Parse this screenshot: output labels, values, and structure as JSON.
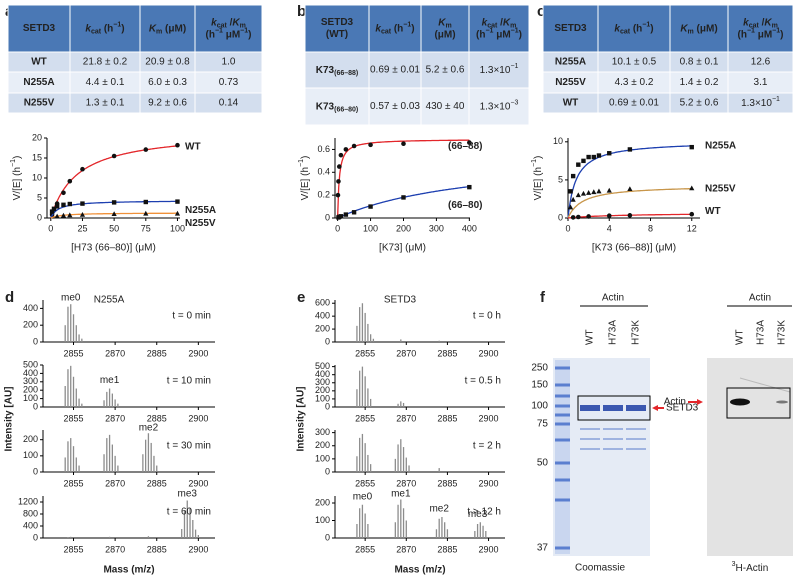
{
  "panel_labels": [
    "a",
    "b",
    "c",
    "d",
    "e",
    "f"
  ],
  "tables": [
    {
      "header": [
        "SETD3",
        [
          [
            {
              "text": "k",
              "style": "i"
            },
            {
              "text": "cat",
              "style": "sub"
            },
            " (h",
            {
              "text": "−1",
              "style": "sup"
            },
            ")"
          ]
        ],
        [
          [
            {
              "text": "K",
              "style": "i"
            },
            {
              "text": "m",
              "style": "sub"
            },
            " (μM)"
          ]
        ],
        [
          [
            {
              "text": "k",
              "style": "i"
            },
            {
              "text": "cat",
              "style": "sub"
            },
            " /",
            {
              "text": "K",
              "style": "i"
            },
            {
              "text": "m",
              "style": "sub"
            }
          ],
          [
            "(h",
            {
              "text": "−1",
              "style": "sup"
            },
            " μM",
            {
              "text": "−1",
              "style": "sup"
            },
            ")"
          ]
        ]
      ],
      "rows": [
        {
          "color": "#e3262a",
          "cells": [
            "WT",
            "21.8 ± 0.2",
            "20.9 ± 0.8",
            "1.0"
          ]
        },
        {
          "color": "#1d3fb0",
          "cells": [
            "N255A",
            "4.4 ± 0.1",
            "6.0 ± 0.3",
            "0.73"
          ]
        },
        {
          "color": "#f0913a",
          "cells": [
            "N255V",
            "1.3 ± 0.1",
            "9.2 ± 0.6",
            "0.14"
          ]
        }
      ]
    },
    {
      "header": [
        [
          "SETD3",
          "(WT)"
        ],
        [
          [
            {
              "text": "k",
              "style": "i"
            },
            {
              "text": "cat",
              "style": "sub"
            },
            " (h",
            {
              "text": "−1",
              "style": "sup"
            },
            ")"
          ]
        ],
        [
          [
            {
              "text": "K",
              "style": "i"
            },
            {
              "text": "m",
              "style": "sub"
            }
          ],
          [
            "(μM)"
          ]
        ],
        [
          [
            {
              "text": "k",
              "style": "i"
            },
            {
              "text": "cat",
              "style": "sub"
            },
            " /",
            {
              "text": "K",
              "style": "i"
            },
            {
              "text": "m",
              "style": "sub"
            }
          ],
          [
            "(h",
            {
              "text": "−1",
              "style": "sup"
            },
            " μM",
            {
              "text": "−1",
              "style": "sup"
            },
            ")"
          ]
        ]
      ],
      "rows": [
        {
          "color": "#e3262a",
          "cells": [
            [
              [
                "K73",
                {
                  "text": "(66–88)",
                  "style": "sub"
                }
              ]
            ],
            "0.69 ± 0.01",
            "5.2 ± 0.6",
            [
              [
                "1.3×10",
                {
                  "text": "−1",
                  "style": "sup"
                }
              ]
            ]
          ]
        },
        {
          "color": "#1d3fb0",
          "cells": [
            [
              [
                "K73",
                {
                  "text": "(66–80)",
                  "style": "sub"
                }
              ]
            ],
            "0.57 ± 0.03",
            "430 ± 40",
            [
              [
                "1.3×10",
                {
                  "text": "−3",
                  "style": "sup"
                }
              ]
            ]
          ]
        }
      ]
    },
    {
      "header": [
        "SETD3",
        [
          [
            {
              "text": "k",
              "style": "i"
            },
            {
              "text": "cat",
              "style": "sub"
            },
            " (h",
            {
              "text": "−1",
              "style": "sup"
            },
            ")"
          ]
        ],
        [
          [
            {
              "text": "K",
              "style": "i"
            },
            {
              "text": "m",
              "style": "sub"
            },
            " (μM)"
          ]
        ],
        [
          [
            {
              "text": "k",
              "style": "i"
            },
            {
              "text": "cat",
              "style": "sub"
            },
            " /",
            {
              "text": "K",
              "style": "i"
            },
            {
              "text": "m",
              "style": "sub"
            }
          ],
          [
            "(h",
            {
              "text": "−1",
              "style": "sup"
            },
            " μM",
            {
              "text": "−1",
              "style": "sup"
            },
            ")"
          ]
        ]
      ],
      "rows": [
        {
          "color": "#1d3fb0",
          "cells": [
            "N255A",
            "10.1 ± 0.5",
            "0.8 ± 0.1",
            "12.6"
          ]
        },
        {
          "color": "#f0913a",
          "cells": [
            "N255V",
            "4.3 ± 0.2",
            "1.4 ± 0.2",
            "3.1"
          ]
        },
        {
          "color": "#e3262a",
          "cells": [
            "WT",
            "0.69 ± 0.01",
            "5.2 ± 0.6",
            [
              [
                "1.3×10",
                {
                  "text": "−1",
                  "style": "sup"
                }
              ]
            ]
          ]
        }
      ]
    }
  ],
  "chart_data": [
    {
      "type": "scatter",
      "xlabel": "[H73 (66–80)] (μM)",
      "ylabel": [
        [
          "V/[E] (h",
          {
            "text": "−1",
            "style": "sup"
          },
          ")"
        ]
      ],
      "xlim": [
        -3,
        102
      ],
      "ylim": [
        0,
        20
      ],
      "xticks": [
        0,
        25,
        50,
        75,
        100
      ],
      "yticks": [
        0,
        5,
        10,
        15,
        20
      ],
      "series": [
        {
          "name": "WT",
          "color": "#e3262a",
          "marker": "circle",
          "kcat": 21.8,
          "km": 20.9,
          "x": [
            1,
            2.5,
            5,
            10,
            15,
            25,
            50,
            75,
            100
          ],
          "values": [
            0.8,
            2,
            3.6,
            6.3,
            9.2,
            12.2,
            15.5,
            17.1,
            18.2
          ]
        },
        {
          "name": "N255A",
          "color": "#1d3fb0",
          "marker": "square",
          "kcat": 4.4,
          "km": 6.0,
          "x": [
            1,
            2.5,
            5,
            10,
            15,
            25,
            50,
            75,
            100
          ],
          "values": [
            1.6,
            2.3,
            2.9,
            3.3,
            3.5,
            3.6,
            3.9,
            4.0,
            4.1
          ]
        },
        {
          "name": "N255V",
          "color": "#f0913a",
          "marker": "triangle",
          "kcat": 1.3,
          "km": 9.2,
          "x": [
            5,
            10,
            15,
            25,
            50,
            75,
            100
          ],
          "values": [
            0.4,
            0.6,
            0.7,
            0.8,
            1.0,
            1.1,
            1.1
          ]
        }
      ]
    },
    {
      "type": "scatter",
      "xlabel": "[K73] (μM)",
      "ylabel": [
        [
          "V/[E] (h",
          {
            "text": "−1",
            "style": "sup"
          },
          ")"
        ]
      ],
      "xlim": [
        -8,
        402
      ],
      "ylim": [
        0,
        0.7
      ],
      "xticks": [
        0,
        100,
        200,
        300,
        400
      ],
      "yticks": [
        0,
        0.2,
        0.4,
        0.6
      ],
      "series": [
        {
          "name": "(66–88)",
          "color": "#e3262a",
          "marker": "circle",
          "kcat": 0.69,
          "km": 5.2,
          "x": [
            1,
            2.5,
            5,
            10,
            25,
            50,
            100,
            200,
            400
          ],
          "values": [
            0.2,
            0.32,
            0.45,
            0.55,
            0.6,
            0.63,
            0.64,
            0.65,
            0.66
          ]
        },
        {
          "name": "(66–80)",
          "color": "#1d3fb0",
          "marker": "square",
          "kcat": 0.57,
          "km": 430,
          "x": [
            2.5,
            5,
            10,
            25,
            50,
            100,
            200,
            400
          ],
          "values": [
            0.005,
            0.01,
            0.015,
            0.03,
            0.05,
            0.1,
            0.18,
            0.27
          ]
        }
      ]
    },
    {
      "type": "scatter",
      "xlabel": "[K73 (66–88)] (μM)",
      "ylabel": [
        [
          "V/[E] (h",
          {
            "text": "−1",
            "style": "sup"
          },
          ")"
        ]
      ],
      "xlim": [
        0,
        12.8
      ],
      "ylim": [
        0,
        10.5
      ],
      "xticks": [
        0,
        4,
        8,
        12
      ],
      "yticks": [
        0,
        5,
        10
      ],
      "series": [
        {
          "name": "N255A",
          "color": "#1d3fb0",
          "marker": "square",
          "kcat": 10.1,
          "km": 0.8,
          "x": [
            0.25,
            0.5,
            1,
            1.5,
            2,
            2.5,
            3,
            4,
            6,
            12
          ],
          "values": [
            3.5,
            5.5,
            7,
            7.5,
            8,
            8,
            8.2,
            8.5,
            9,
            9.3
          ]
        },
        {
          "name": "N255V",
          "color": "#c8964a",
          "marker": "triangle",
          "kcat": 4.3,
          "km": 1.4,
          "x": [
            0.25,
            0.5,
            1,
            1.5,
            2,
            2.5,
            3,
            4,
            6,
            12
          ],
          "values": [
            1.4,
            2.4,
            3,
            3.2,
            3.3,
            3.4,
            3.5,
            3.6,
            3.8,
            3.9
          ]
        },
        {
          "name": "WT",
          "color": "#e3262a",
          "marker": "circle",
          "kcat": 0.69,
          "km": 5.2,
          "x": [
            0.5,
            1,
            2,
            4,
            6,
            12
          ],
          "values": [
            0.08,
            0.13,
            0.2,
            0.3,
            0.35,
            0.5
          ]
        }
      ]
    },
    {
      "type": "spectrum",
      "title": "N255A",
      "ylabel": "Intensity [AU]",
      "note": "t = 0 min",
      "annotations": [
        "me0"
      ],
      "color": "#8c8c8c",
      "annotation_color": "#e3262a",
      "xlim": [
        2844,
        2906
      ],
      "ylim": [
        0,
        500
      ],
      "xticks": [
        2855,
        2870,
        2885,
        2900
      ],
      "yticks": [
        0,
        200,
        400
      ],
      "x": [
        2852,
        2853,
        2854,
        2855,
        2856,
        2857,
        2858
      ],
      "values": [
        200,
        420,
        450,
        330,
        200,
        90,
        40
      ]
    },
    {
      "type": "spectrum",
      "note": "t = 10 min",
      "annotations": [
        "me1"
      ],
      "color": "#8c8c8c",
      "annotation_color": "#e3262a",
      "xlim": [
        2844,
        2906
      ],
      "ylim": [
        0,
        500
      ],
      "xticks": [
        2855,
        2870,
        2885,
        2900
      ],
      "yticks": [
        0,
        100,
        200,
        300,
        400,
        500
      ],
      "x": [
        2852,
        2853,
        2854,
        2855,
        2856,
        2857,
        2858,
        2866,
        2867,
        2868,
        2869,
        2870,
        2871
      ],
      "values": [
        250,
        450,
        490,
        360,
        220,
        100,
        40,
        80,
        180,
        220,
        160,
        90,
        40
      ]
    },
    {
      "type": "spectrum",
      "note": "t = 30 min",
      "annotations": [
        "me2"
      ],
      "color": "#8c8c8c",
      "annotation_color": "#e3262a",
      "xlim": [
        2844,
        2906
      ],
      "ylim": [
        0,
        260
      ],
      "xticks": [
        2855,
        2870,
        2885,
        2900
      ],
      "yticks": [
        0,
        100,
        200
      ],
      "x": [
        2852,
        2853,
        2854,
        2855,
        2856,
        2857,
        2866,
        2867,
        2868,
        2869,
        2870,
        2871,
        2880,
        2881,
        2882,
        2883,
        2884,
        2885
      ],
      "values": [
        90,
        190,
        210,
        160,
        90,
        40,
        110,
        210,
        230,
        170,
        100,
        40,
        110,
        200,
        240,
        180,
        100,
        40
      ]
    },
    {
      "type": "spectrum",
      "note": "t = 60 min",
      "annotations": [
        "me3"
      ],
      "color": "#8c8c8c",
      "annotation_color": "#e3262a",
      "xlim": [
        2844,
        2906
      ],
      "ylim": [
        0,
        1400
      ],
      "xticks": [
        2855,
        2870,
        2885,
        2900
      ],
      "yticks": [
        0,
        400,
        800,
        1200
      ],
      "x": [
        2853,
        2854,
        2868,
        2882,
        2894,
        2895,
        2896,
        2897,
        2898,
        2899,
        2900
      ],
      "values": [
        30,
        40,
        40,
        60,
        300,
        900,
        1250,
        1000,
        600,
        280,
        100
      ],
      "xlabel": "Mass (m/z)"
    },
    {
      "type": "spectrum",
      "title": "SETD3",
      "ylabel": "Intensity [AU]",
      "note": "t = 0 h",
      "annotations": [],
      "color": "#8c8c8c",
      "annotation_color": "#e3262a",
      "xlim": [
        2844,
        2906
      ],
      "ylim": [
        0,
        650
      ],
      "xticks": [
        2855,
        2870,
        2885,
        2900
      ],
      "yticks": [
        0,
        200,
        400,
        600
      ],
      "x": [
        2852,
        2853,
        2854,
        2855,
        2856,
        2857,
        2858,
        2868,
        2882
      ],
      "values": [
        250,
        540,
        600,
        450,
        280,
        120,
        50,
        40,
        20
      ]
    },
    {
      "type": "spectrum",
      "note": "t = 0.5 h",
      "annotations": [],
      "color": "#8c8c8c",
      "annotation_color": "#e3262a",
      "xlim": [
        2844,
        2906
      ],
      "ylim": [
        0,
        520
      ],
      "xticks": [
        2855,
        2870,
        2885,
        2900
      ],
      "yticks": [
        0,
        100,
        200,
        300,
        400,
        500
      ],
      "x": [
        2852,
        2853,
        2854,
        2855,
        2856,
        2857,
        2867,
        2868,
        2869
      ],
      "values": [
        220,
        450,
        500,
        380,
        230,
        100,
        40,
        70,
        50
      ]
    },
    {
      "type": "spectrum",
      "note": "t = 2 h",
      "annotations": [],
      "color": "#8c8c8c",
      "annotation_color": "#e3262a",
      "xlim": [
        2844,
        2906
      ],
      "ylim": [
        0,
        320
      ],
      "xticks": [
        2855,
        2870,
        2885,
        2900
      ],
      "yticks": [
        0,
        100,
        200,
        300
      ],
      "x": [
        2852,
        2853,
        2854,
        2855,
        2856,
        2857,
        2866,
        2867,
        2868,
        2869,
        2870,
        2871,
        2882
      ],
      "values": [
        120,
        260,
        290,
        220,
        130,
        60,
        100,
        210,
        250,
        190,
        110,
        50,
        30
      ]
    },
    {
      "type": "spectrum",
      "note": "t > 12 h",
      "annotations": [
        "me0",
        "me1",
        "me2",
        "me3"
      ],
      "color": "#8c8c8c",
      "annotation_color": "#e3262a",
      "xlim": [
        2844,
        2906
      ],
      "ylim": [
        0,
        240
      ],
      "xticks": [
        2855,
        2870,
        2885,
        2900
      ],
      "yticks": [
        0,
        100,
        200
      ],
      "x": [
        2852,
        2853,
        2854,
        2855,
        2856,
        2866,
        2867,
        2868,
        2869,
        2870,
        2881,
        2882,
        2883,
        2884,
        2885,
        2895,
        2896,
        2897,
        2898,
        2899
      ],
      "values": [
        80,
        170,
        190,
        140,
        80,
        90,
        190,
        220,
        170,
        100,
        50,
        110,
        120,
        90,
        50,
        40,
        80,
        90,
        70,
        40
      ],
      "xlabel": "Mass (m/z)"
    }
  ],
  "gels": [
    {
      "header": "Actin",
      "lanes": [
        "WT",
        "H73A",
        "H73K"
      ],
      "markers": [
        250,
        150,
        100,
        75,
        50,
        37
      ],
      "band_label": "SETD3",
      "caption": "Coomassie"
    },
    {
      "header": "Actin",
      "lanes": [
        "WT",
        "H73A",
        "H73K"
      ],
      "band_label": "Actin",
      "caption": [
        [
          {
            "text": "3",
            "style": "sup"
          },
          "H-Actin"
        ]
      ]
    }
  ]
}
